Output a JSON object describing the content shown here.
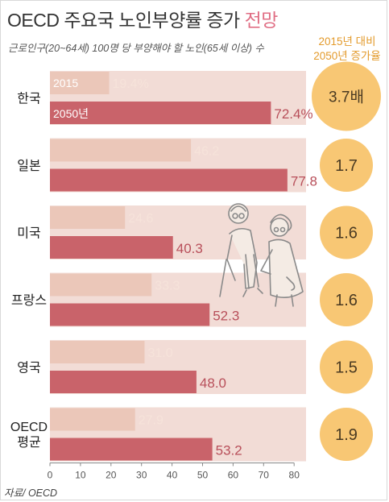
{
  "header": {
    "title": "OECD 주요국 노인부양률 증가",
    "title_suffix": "전망",
    "subtitle": "근로인구(20~64세) 100명 당 부양해야 할 노인(65세 이상) 수",
    "ratio_header_line1": "2015년 대비",
    "ratio_header_line2": "2050년 증가율"
  },
  "source": "자료/ OECD",
  "colors": {
    "panel": "#f2dcd6",
    "bar_2015": "#ebc7b9",
    "bar_2050": "#c9636a",
    "text_2015": "#f6e3da",
    "value_2050": "#b84f5a",
    "circle": "#f8c774",
    "circle_text": "#4a3a22",
    "axis_text": "#555555"
  },
  "chart_data": {
    "type": "bar",
    "orientation": "horizontal",
    "categories": [
      "한국",
      "일본",
      "미국",
      "프랑스",
      "영국",
      "OECD 평균"
    ],
    "series": [
      {
        "name": "2015",
        "values": [
          19.4,
          46.2,
          24.6,
          33.3,
          31.0,
          27.9
        ]
      },
      {
        "name": "2050년",
        "values": [
          72.4,
          77.8,
          40.3,
          52.3,
          48.0,
          53.2
        ]
      }
    ],
    "value_labels_2015": [
      "19.4%",
      "46.2",
      "24.6",
      "33.3",
      "31.0",
      "27.9"
    ],
    "value_labels_2050": [
      "72.4%",
      "77.8",
      "40.3",
      "52.3",
      "48.0",
      "53.2"
    ],
    "ratios": [
      "3.7배",
      "1.7",
      "1.6",
      "1.6",
      "1.5",
      "1.9"
    ],
    "xlim": [
      0,
      80
    ],
    "xticks": [
      0,
      10,
      20,
      30,
      40,
      50,
      60,
      70,
      80
    ],
    "grid": false
  }
}
